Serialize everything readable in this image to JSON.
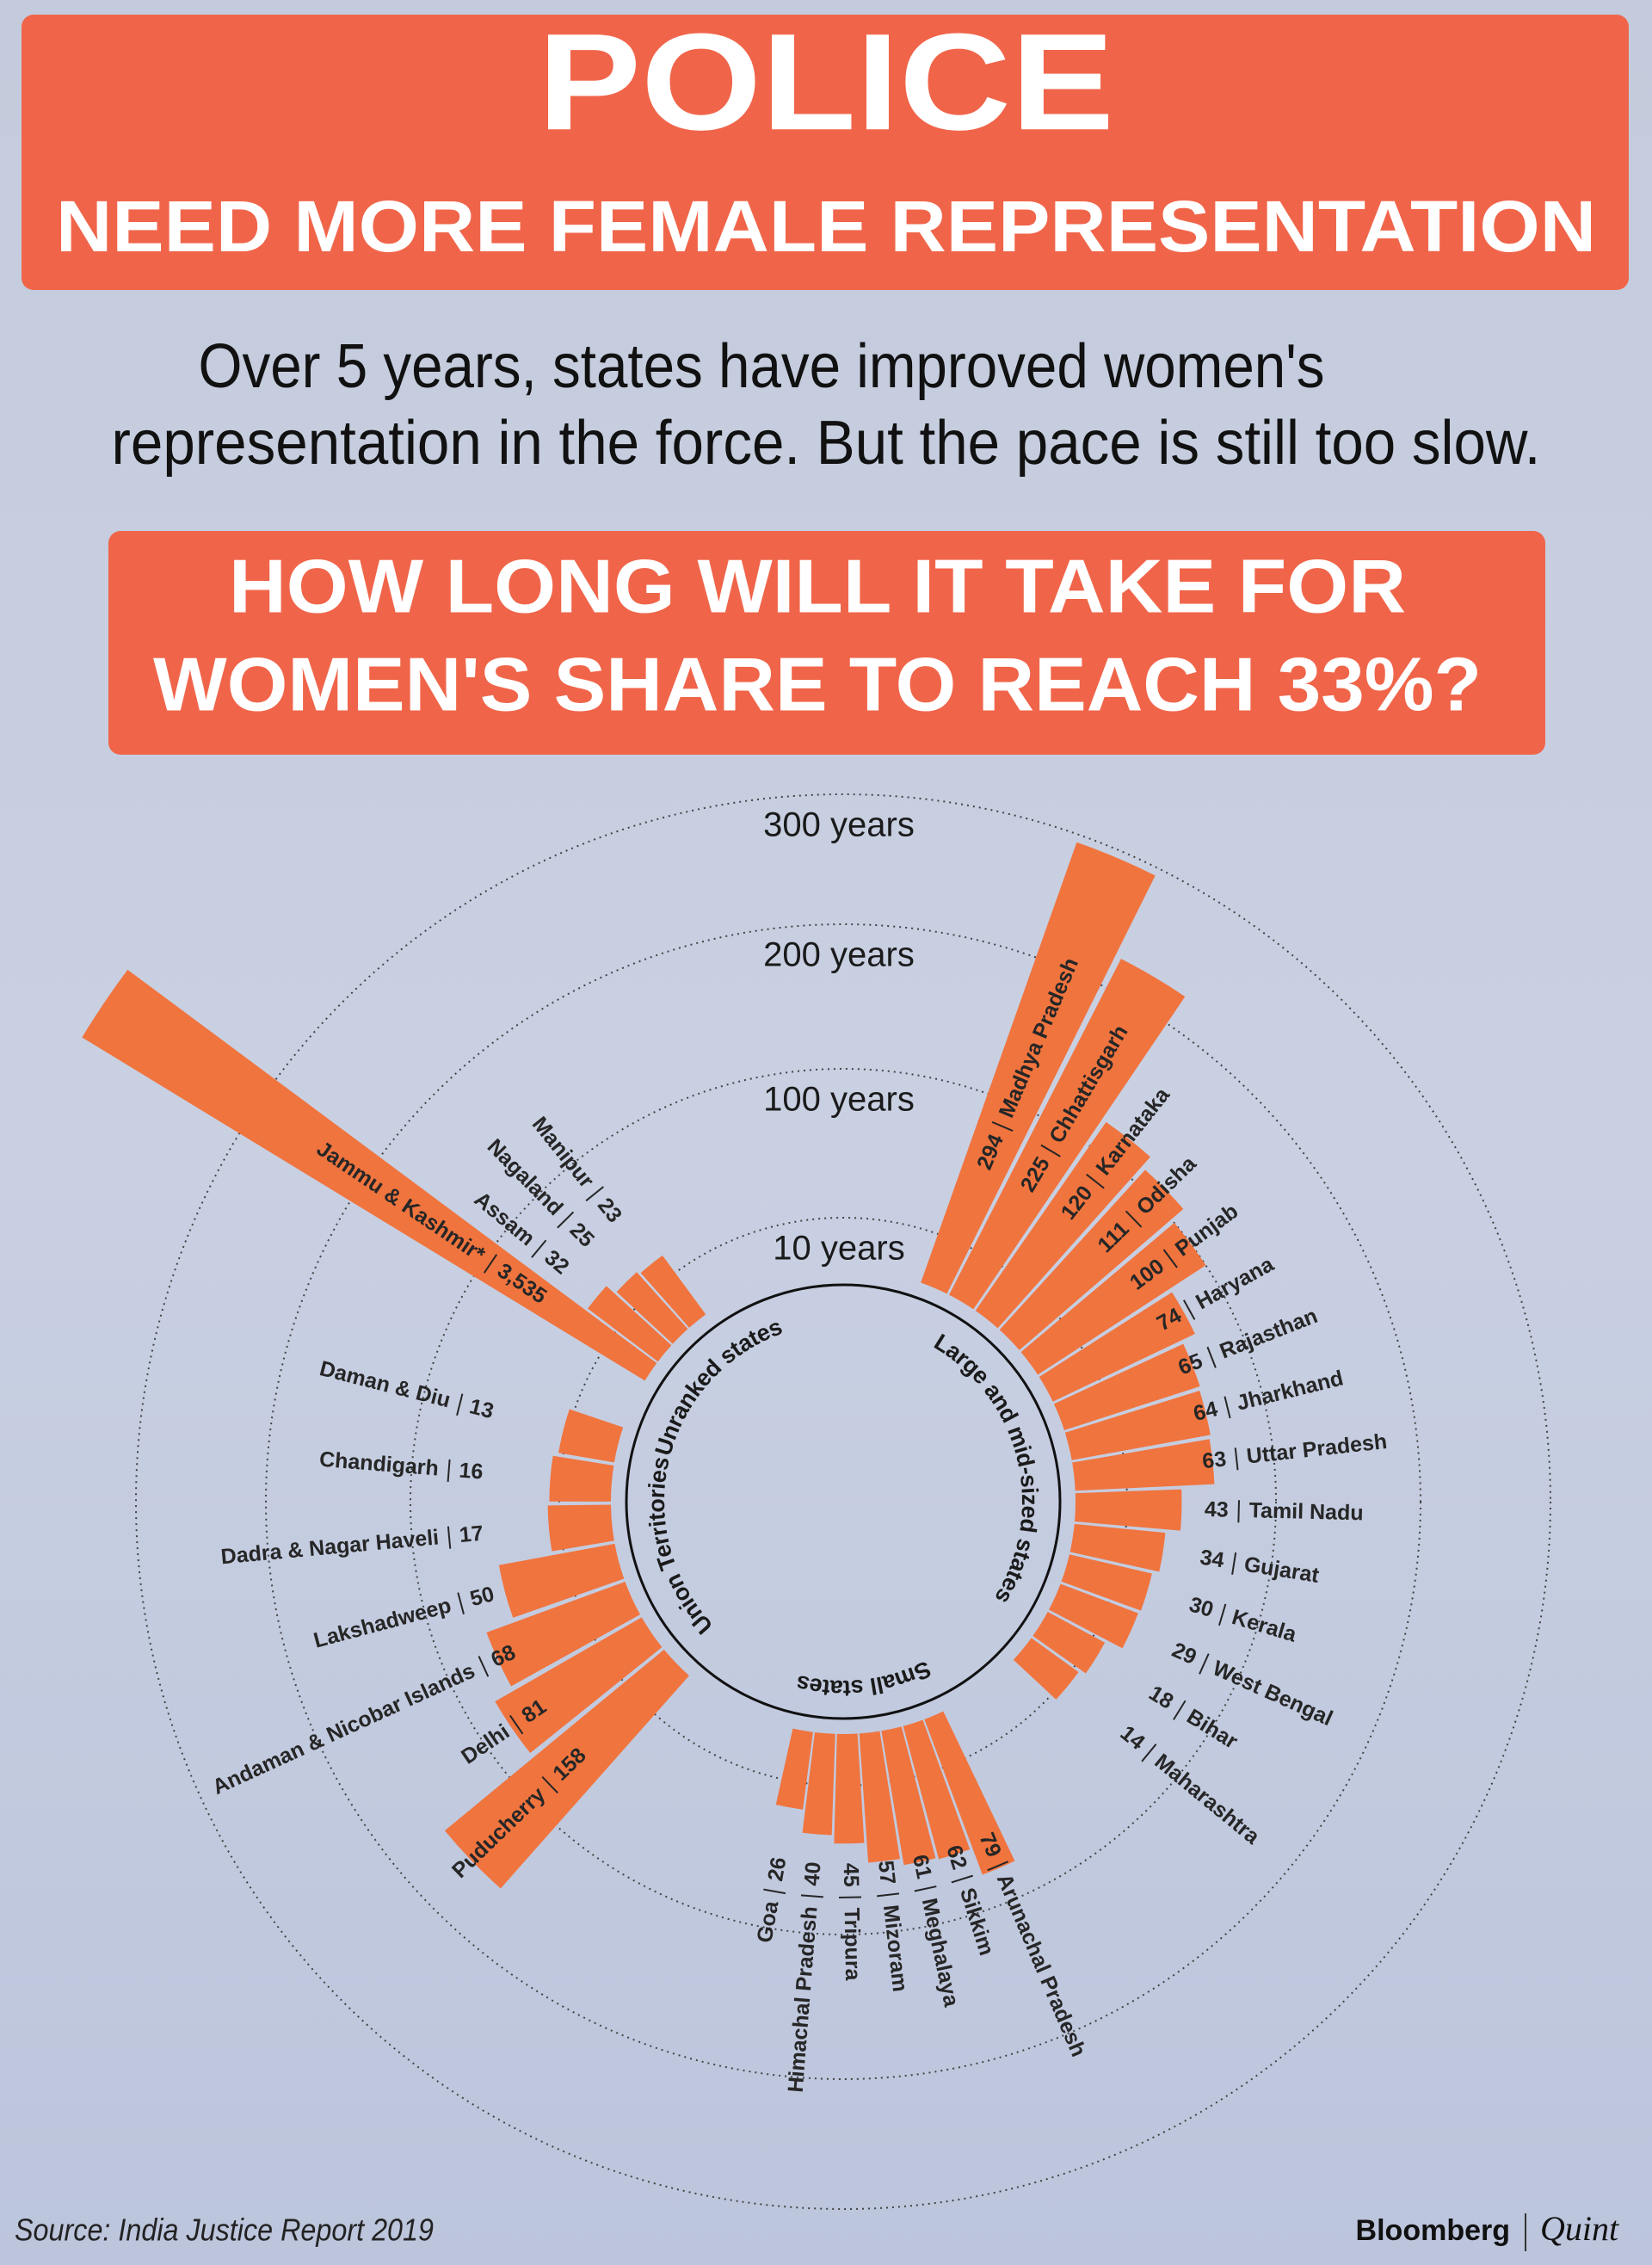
{
  "header": {
    "title": "POLICE",
    "subtitle": "NEED MORE FEMALE REPRESENTATION"
  },
  "description": [
    "Over 5 years, states have improved women's",
    "representation in the force. But the pace is still too slow."
  ],
  "question": [
    "HOW LONG WILL IT TAKE FOR",
    "WOMEN'S SHARE TO REACH 33%?"
  ],
  "chart_data": {
    "type": "radial-bar",
    "color": "#f0743e",
    "yticks": [
      {
        "value": 10,
        "label": "10 years"
      },
      {
        "value": 100,
        "label": "100 years"
      },
      {
        "value": 200,
        "label": "200 years"
      },
      {
        "value": 300,
        "label": "300 years"
      }
    ],
    "groups": [
      {
        "name": "Large and mid-sized states",
        "categories": [
          "Madhya Pradesh",
          "Chhattisgarh",
          "Karnataka",
          "Odisha",
          "Punjab",
          "Haryana",
          "Rajasthan",
          "Jharkhand",
          "Uttar Pradesh",
          "Tamil Nadu",
          "Gujarat",
          "Kerala",
          "West Bengal",
          "Bihar",
          "Maharashtra"
        ],
        "values": [
          294,
          225,
          120,
          111,
          100,
          74,
          65,
          64,
          63,
          43,
          34,
          30,
          29,
          18,
          14
        ]
      },
      {
        "name": "Small states",
        "categories": [
          "Arunachal Pradesh",
          "Sikkim",
          "Meghalaya",
          "Mizoram",
          "Tripura",
          "Himachal Pradesh",
          "Goa"
        ],
        "values": [
          79,
          62,
          61,
          57,
          45,
          40,
          26
        ]
      },
      {
        "name": "Union Territories",
        "categories": [
          "Puducherry",
          "Delhi",
          "Andaman & Nicobar Islands",
          "Lakshadweep",
          "Dadra & Nagar Haveli",
          "Chandigarh",
          "Daman & Diu"
        ],
        "values": [
          158,
          81,
          68,
          50,
          17,
          16,
          13
        ]
      },
      {
        "name": "Unranked states",
        "categories": [
          "Jammu & Kashmir*",
          "Assam",
          "Nagaland",
          "Manipur"
        ],
        "values": [
          3535,
          32,
          25,
          23
        ],
        "value_labels": [
          "3,535",
          "32",
          "25",
          "23"
        ]
      }
    ]
  },
  "source": "Source: India Justice Report 2019",
  "brand": [
    "Bloomberg",
    "Quint"
  ]
}
